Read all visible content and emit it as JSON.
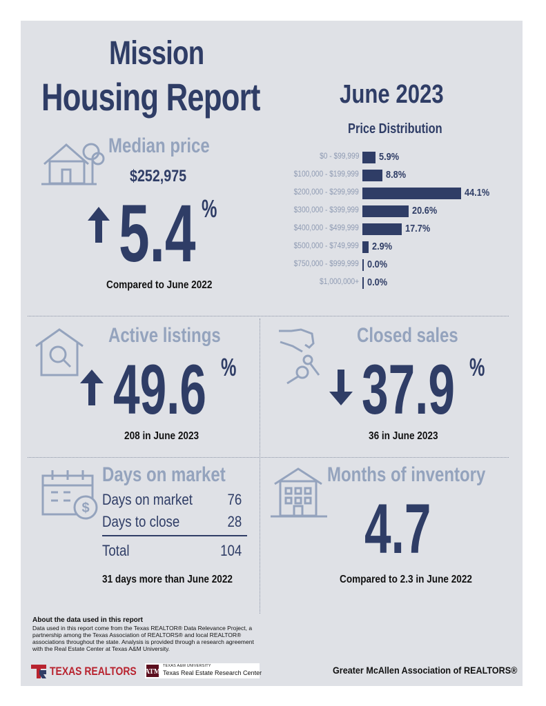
{
  "header": {
    "city": "Mission",
    "report_title": "Housing Report",
    "month": "June 2023"
  },
  "median_price": {
    "title": "Median price",
    "value": "$252,975",
    "change": "5.4",
    "percent_sign": "%",
    "direction": "up",
    "caption": "Compared to June 2022"
  },
  "price_distribution": {
    "title": "Price Distribution",
    "rows": [
      {
        "label": "$0 - $99,999",
        "value": "5.9%",
        "pct": 5.9
      },
      {
        "label": "$100,000 - $199,999",
        "value": "8.8%",
        "pct": 8.8
      },
      {
        "label": "$200,000 - $299,999",
        "value": "44.1%",
        "pct": 44.1
      },
      {
        "label": "$300,000 - $399,999",
        "value": "20.6%",
        "pct": 20.6
      },
      {
        "label": "$400,000 - $499,999",
        "value": "17.7%",
        "pct": 17.7
      },
      {
        "label": "$500,000 - $749,999",
        "value": "2.9%",
        "pct": 2.9
      },
      {
        "label": "$750,000 - $999,999",
        "value": "0.0%",
        "pct": 0.0
      },
      {
        "label": "$1,000,000+",
        "value": "0.0%",
        "pct": 0.0
      }
    ]
  },
  "active_listings": {
    "title": "Active listings",
    "change": "49.6",
    "percent_sign": "%",
    "direction": "up",
    "caption": "208 in June 2023"
  },
  "closed_sales": {
    "title": "Closed sales",
    "change": "37.9",
    "percent_sign": "%",
    "direction": "down",
    "caption": "36 in June 2023"
  },
  "days_on_market": {
    "title": "Days on market",
    "rows": [
      {
        "label": "Days on market",
        "value": "76"
      },
      {
        "label": "Days to close",
        "value": "28"
      }
    ],
    "total_label": "Total",
    "total_value": "104",
    "caption": "31 days more than June 2022"
  },
  "months_inventory": {
    "title": "Months of inventory",
    "value": "4.7",
    "caption": "Compared to 2.3 in June 2022"
  },
  "footer": {
    "about_heading": "About the data used in this report",
    "about_text": "Data used in this report come from the Texas REALTOR® Data Relevance Project, a partnership among the Texas Association of REALTORS® and local REALTOR® associations throughout the state. Analysis is provided through a research agreement with the Real Estate Center at Texas A&M University.",
    "texas_realtors_logo": "TEXAS REALTORS",
    "tamu_small": "TEXAS A&M UNIVERSITY",
    "tamu_center": "Texas Real Estate Research Center",
    "association": "Greater McAllen Association of REALTORS®"
  },
  "colors": {
    "navy": "#2f3d66",
    "light": "#94a3bd",
    "panel": "#dfe1e6",
    "logo_red": "#b8232f"
  }
}
